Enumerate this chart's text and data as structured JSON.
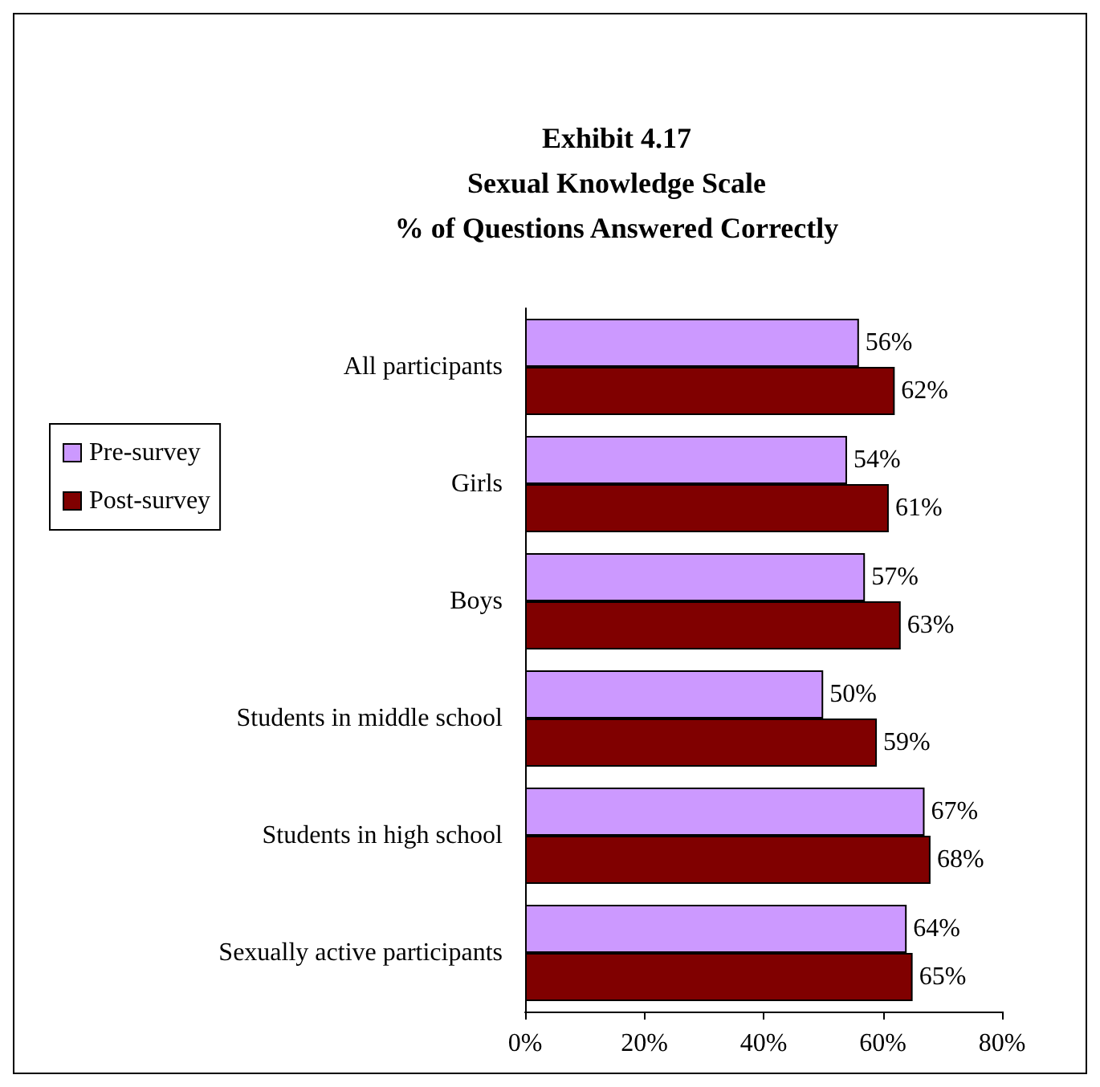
{
  "chart_data": {
    "type": "bar",
    "orientation": "horizontal",
    "title": "Exhibit 4.17\nSexual Knowledge Scale\n% of Questions Answered Correctly",
    "categories": [
      "All participants",
      "Girls",
      "Boys",
      "Students in middle school",
      "Students in high school",
      "Sexually active participants"
    ],
    "series": [
      {
        "name": "Pre-survey",
        "color": "#cc99ff",
        "values": [
          56,
          54,
          57,
          50,
          67,
          64
        ],
        "value_labels": [
          "56%",
          "54%",
          "57%",
          "50%",
          "67%",
          "64%"
        ]
      },
      {
        "name": "Post-survey",
        "color": "#800000",
        "values": [
          62,
          61,
          63,
          59,
          68,
          65
        ],
        "value_labels": [
          "62%",
          "61%",
          "63%",
          "59%",
          "68%",
          "65%"
        ]
      }
    ],
    "xlim": [
      0,
      80
    ],
    "xticks": [
      {
        "value": 0,
        "label": "0%"
      },
      {
        "value": 20,
        "label": "20%"
      },
      {
        "value": 40,
        "label": "40%"
      },
      {
        "value": 60,
        "label": "60%"
      },
      {
        "value": 80,
        "label": "80%"
      }
    ],
    "grid": false,
    "legend": "left"
  }
}
